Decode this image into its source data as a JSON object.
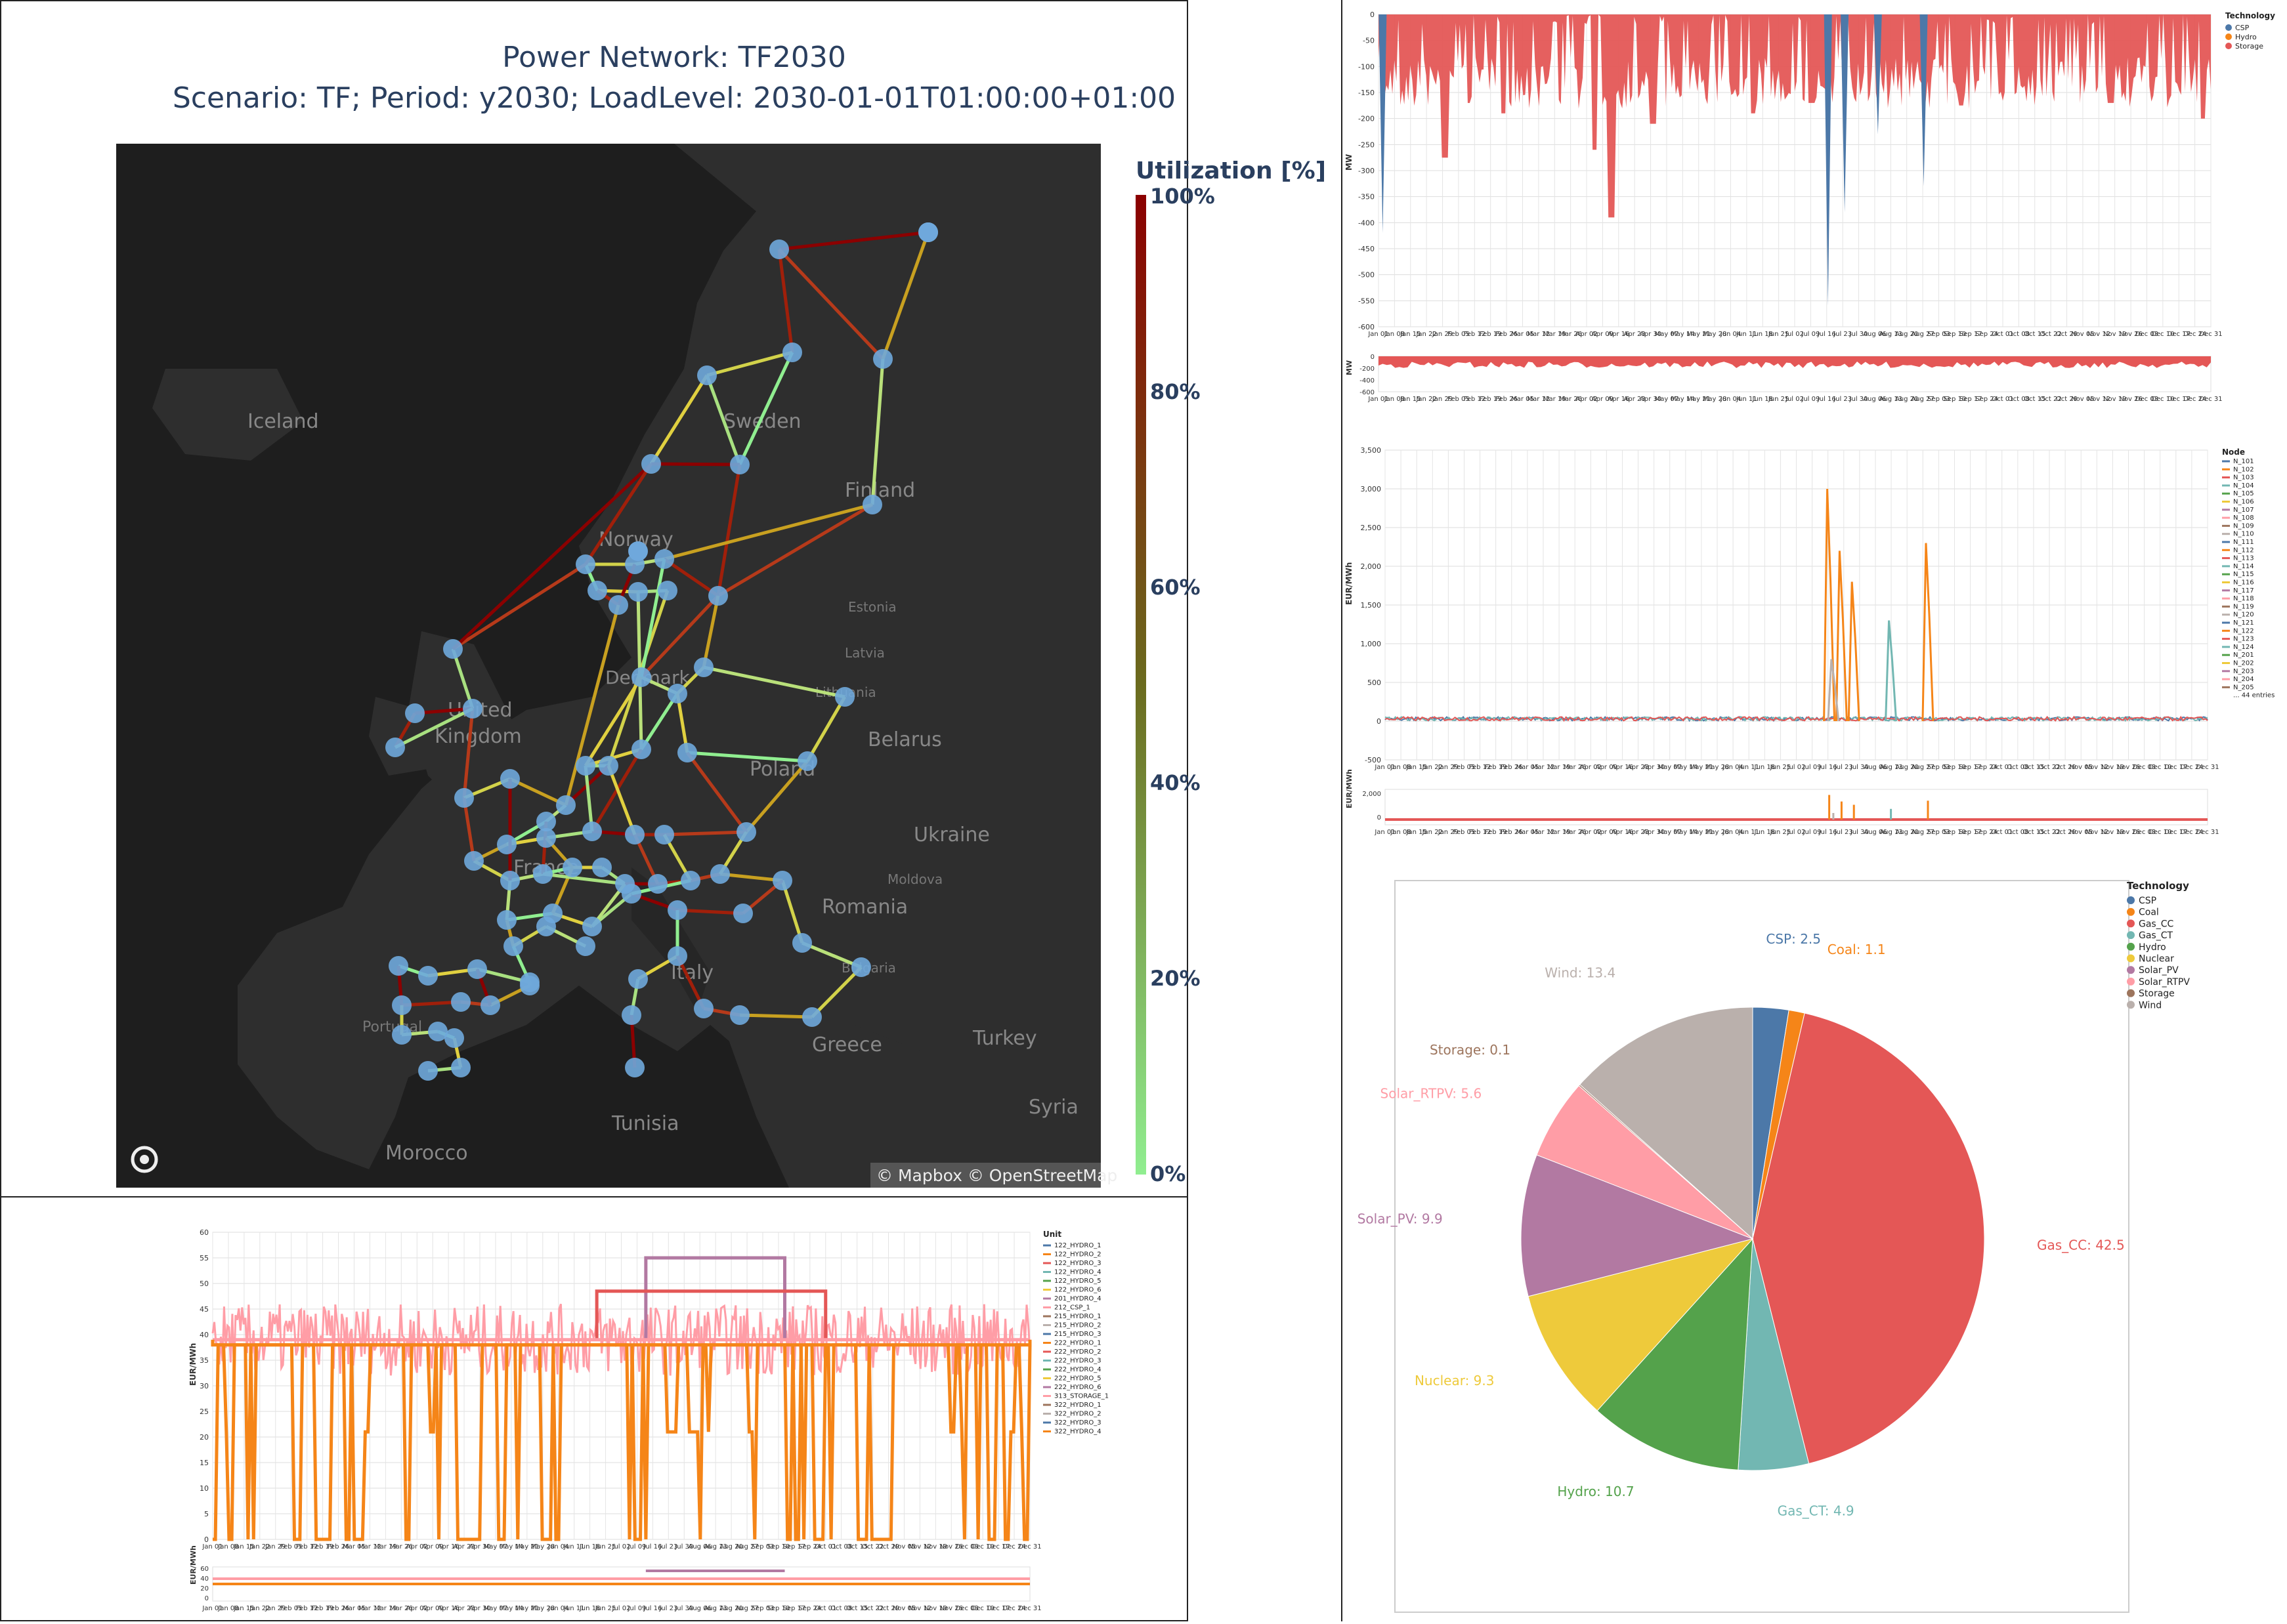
{
  "map": {
    "title": "Power Network: TF2030",
    "subtitle": "Scenario: TF; Period: y2030; LoadLevel: 2030-01-01T01:00:00+01:00",
    "colorbar_title": "Utilization [%]",
    "colorbar_ticks": [
      "100%",
      "80%",
      "60%",
      "40%",
      "20%",
      "0%"
    ],
    "attribution": "© Mapbox © OpenStreetMap",
    "place_labels": [
      "Iceland",
      "Sweden",
      "Finland",
      "Norway",
      "Estonia",
      "Latvia",
      "Lithuania",
      "Denmark",
      "United",
      "Kingdom",
      "Belarus",
      "Poland",
      "Ukraine",
      "France",
      "Moldova",
      "Romania",
      "Italy",
      "Bulgaria",
      "Portugal",
      "Greece",
      "Turkey",
      "Tunisia",
      "Syria",
      "Morocco"
    ],
    "colors": {
      "background": "#1d1d1d",
      "land": "#2c2c2c",
      "node": "#6fa8dc",
      "low": "#90ee90",
      "high": "#8b0000"
    }
  },
  "chart_data": [
    {
      "id": "storage",
      "type": "area",
      "title": "",
      "xlabel": "",
      "ylabel": "MW",
      "ylim": [
        -600,
        0
      ],
      "yticks": [
        "0",
        "-50",
        "-100",
        "-150",
        "-200",
        "-250",
        "-300",
        "-350",
        "-400",
        "-450",
        "-500",
        "-550",
        "-600"
      ],
      "x_ticks": [
        "Jan 01",
        "Jan 08",
        "Jan 15",
        "Jan 22",
        "Jan 29",
        "Feb 05",
        "Feb 12",
        "Feb 19",
        "Feb 26",
        "Mar 05",
        "Mar 12",
        "Mar 19",
        "Mar 26",
        "Apr 02",
        "Apr 09",
        "Apr 16",
        "Apr 23",
        "Apr 30",
        "May 07",
        "May 14",
        "May 21",
        "May 28",
        "Jun 04",
        "Jun 11",
        "Jun 18",
        "Jun 25",
        "Jul 02",
        "Jul 09",
        "Jul 16",
        "Jul 23",
        "Jul 30",
        "Aug 06",
        "Aug 13",
        "Aug 20",
        "Aug 27",
        "Sep 03",
        "Sep 10",
        "Sep 17",
        "Sep 24",
        "Oct 01",
        "Oct 08",
        "Oct 15",
        "Oct 22",
        "Oct 29",
        "Nov 05",
        "Nov 12",
        "Nov 19",
        "Nov 26",
        "Dec 03",
        "Dec 10",
        "Dec 17",
        "Dec 24",
        "Dec 31"
      ],
      "legend_title": "Technology",
      "series": [
        {
          "name": "CSP",
          "color": "#4c78a8",
          "spikes": [
            [
              0.005,
              -420
            ],
            [
              0.54,
              -560
            ],
            [
              0.56,
              -380
            ],
            [
              0.6,
              -230
            ],
            [
              0.655,
              -330
            ]
          ]
        },
        {
          "name": "Hydro",
          "color": "#f58518",
          "spikes": []
        },
        {
          "name": "Storage",
          "color": "#e45756",
          "baseline": -165,
          "spikes": [
            [
              0.08,
              -275
            ],
            [
              0.15,
              -190
            ],
            [
              0.26,
              -260
            ],
            [
              0.28,
              -390
            ],
            [
              0.33,
              -210
            ],
            [
              0.45,
              -190
            ],
            [
              0.52,
              -170
            ],
            [
              0.7,
              -175
            ],
            [
              0.88,
              -170
            ],
            [
              0.99,
              -200
            ]
          ]
        }
      ],
      "legend_position": "top-right"
    },
    {
      "id": "prices",
      "type": "line",
      "title": "",
      "xlabel": "",
      "ylabel": "EUR/MWh",
      "ylim": [
        -500,
        3500
      ],
      "yticks": [
        "3,500",
        "3,000",
        "2,500",
        "2,000",
        "1,500",
        "1,000",
        "500",
        "0",
        "-500"
      ],
      "legend_title": "Node",
      "legend_entries": [
        "N_101",
        "N_102",
        "N_103",
        "N_104",
        "N_105",
        "N_106",
        "N_107",
        "N_108",
        "N_109",
        "N_110",
        "N_111",
        "N_112",
        "N_113",
        "N_114",
        "N_115",
        "N_116",
        "N_117",
        "N_118",
        "N_119",
        "N_120",
        "N_121",
        "N_122",
        "N_123",
        "N_124",
        "N_201",
        "N_202",
        "N_203",
        "N_204",
        "N_205",
        "... 44 entries"
      ],
      "baseline": 30,
      "spikes": [
        [
          0.54,
          3000,
          "#f58518"
        ],
        [
          0.555,
          2200,
          "#f58518"
        ],
        [
          0.57,
          1800,
          "#f58518"
        ],
        [
          0.615,
          1300,
          "#72b7b2"
        ],
        [
          0.66,
          2300,
          "#f58518"
        ],
        [
          0.545,
          800,
          "#bab0ac"
        ]
      ],
      "legend_position": "top-right"
    },
    {
      "id": "unit_prices",
      "type": "line",
      "title": "",
      "xlabel": "",
      "ylabel": "EUR/MWh",
      "ylim": [
        0,
        60
      ],
      "yticks": [
        "60",
        "55",
        "50",
        "45",
        "40",
        "35",
        "30",
        "25",
        "20",
        "15",
        "10",
        "5",
        "0"
      ],
      "legend_title": "Unit",
      "legend_entries": [
        "122_HYDRO_1",
        "122_HYDRO_2",
        "122_HYDRO_3",
        "122_HYDRO_4",
        "122_HYDRO_5",
        "122_HYDRO_6",
        "201_HYDRO_4",
        "212_CSP_1",
        "215_HYDRO_1",
        "215_HYDRO_2",
        "215_HYDRO_3",
        "222_HYDRO_1",
        "222_HYDRO_2",
        "222_HYDRO_3",
        "222_HYDRO_4",
        "222_HYDRO_5",
        "222_HYDRO_6",
        "313_STORAGE_1",
        "322_HYDRO_1",
        "322_HYDRO_2",
        "322_HYDRO_3",
        "322_HYDRO_4"
      ],
      "series_levels": [
        {
          "name": "313_STORAGE_1",
          "color": "#b279a2",
          "value": 55,
          "from": 0.53,
          "to": 0.7
        },
        {
          "name": "222_HYDRO_1",
          "color": "#e45756",
          "value": 48.5,
          "from": 0.47,
          "to": 0.75
        },
        {
          "name": "322_HYDRO_1",
          "color": "#ff9da6",
          "value": 39,
          "from": 0,
          "to": 1
        },
        {
          "name": "122_HYDRO_1",
          "color": "#f58518",
          "value": 38,
          "from": 0,
          "to": 1
        }
      ],
      "legend_position": "top-right"
    },
    {
      "id": "mix",
      "type": "pie",
      "title": "",
      "legend_title": "Technology",
      "slices": [
        {
          "label": "CSP",
          "value": 2.5,
          "color": "#4c78a8"
        },
        {
          "label": "Coal",
          "value": 1.1,
          "color": "#f58518"
        },
        {
          "label": "Gas_CC",
          "value": 42.5,
          "color": "#e45756"
        },
        {
          "label": "Gas_CT",
          "value": 4.9,
          "color": "#72b7b2"
        },
        {
          "label": "Hydro",
          "value": 10.7,
          "color": "#54a24b"
        },
        {
          "label": "Nuclear",
          "value": 9.3,
          "color": "#eeca3b"
        },
        {
          "label": "Solar_PV",
          "value": 9.9,
          "color": "#b279a2"
        },
        {
          "label": "Solar_RTPV",
          "value": 5.6,
          "color": "#ff9da6"
        },
        {
          "label": "Storage",
          "value": 0.1,
          "color": "#9d755d"
        },
        {
          "label": "Wind",
          "value": 13.4,
          "color": "#bab0ac"
        }
      ],
      "legend_position": "top-right"
    }
  ]
}
